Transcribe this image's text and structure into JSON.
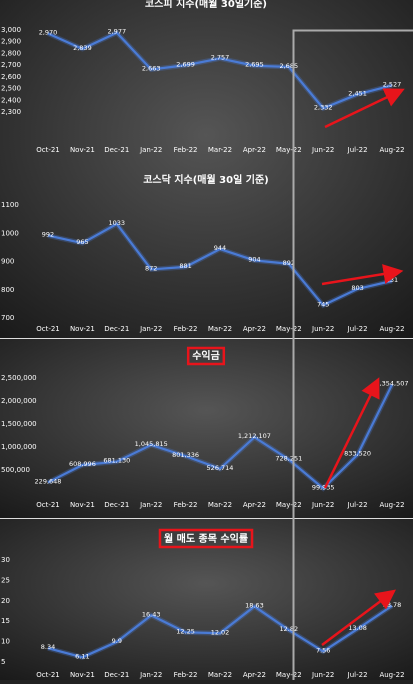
{
  "chart_data": [
    {
      "type": "line",
      "title": "코스피 지수(매월 30일기준)",
      "categories": [
        "Oct-21",
        "Nov-21",
        "Dec-21",
        "Jan-22",
        "Feb-22",
        "Mar-22",
        "Apr-22",
        "May-22",
        "Jun-22",
        "Jul-22",
        "Aug-22"
      ],
      "values": [
        2970,
        2839,
        2977,
        2663,
        2699,
        2757,
        2695,
        2685,
        2332,
        2451,
        2527
      ],
      "value_labels": [
        "2,970",
        "2,839",
        "2,977",
        "2,663",
        "2,699",
        "2,757",
        "2,695",
        "2,685",
        "2,332",
        "2,451",
        "2,527"
      ],
      "color": "#4a7bd6",
      "ylim": [
        2300,
        3000
      ],
      "yticks": [
        {
          "value": 2300,
          "label": "2,300"
        },
        {
          "value": 2400,
          "label": "2,400"
        },
        {
          "value": 2500,
          "label": "2,500"
        },
        {
          "value": 2600,
          "label": "2,600"
        },
        {
          "value": 2700,
          "label": "2,700"
        },
        {
          "value": 2800,
          "label": "2,800"
        },
        {
          "value": 2900,
          "label": "2,900"
        },
        {
          "value": 3000,
          "label": "3,000"
        }
      ]
    },
    {
      "type": "line",
      "title": "코스닥 지수(매월 30일 기준)",
      "categories": [
        "Oct-21",
        "Nov-21",
        "Dec-21",
        "Jan-22",
        "Feb-22",
        "Mar-22",
        "Apr-22",
        "May-22",
        "Jun-22",
        "Jul-22",
        "Aug-22"
      ],
      "values": [
        992,
        965,
        1033,
        872,
        881,
        944,
        904,
        892,
        745,
        803,
        831
      ],
      "color": "#4a7bd6",
      "ylim": [
        700,
        1100
      ],
      "yticks": [
        700,
        800,
        900,
        1000,
        1100
      ]
    },
    {
      "type": "line",
      "title": "수익금",
      "categories": [
        "Oct-21",
        "Nov-21",
        "Dec-21",
        "Jan-22",
        "Feb-22",
        "Mar-22",
        "Apr-22",
        "May-22",
        "Jun-22",
        "Jul-22",
        "Aug-22"
      ],
      "values": [
        229648,
        608996,
        681130,
        1045815,
        801336,
        526714,
        1212107,
        728251,
        99935,
        833520,
        2354507
      ],
      "value_labels": [
        "229,648",
        "608,996",
        "681,130",
        "1,045,815",
        "801,336",
        "526,714",
        "1,212,107",
        "728,251",
        "99,935",
        "833,520",
        "2,354,507"
      ],
      "color": "#4a7bd6",
      "ylim": [
        0,
        2500000
      ],
      "yticks": [
        {
          "value": 500000,
          "label": "500,000"
        },
        {
          "value": 1000000,
          "label": "1,000,000"
        },
        {
          "value": 1500000,
          "label": "1,500,000"
        },
        {
          "value": 2000000,
          "label": "2,000,000"
        },
        {
          "value": 2500000,
          "label": "2,500,000"
        }
      ]
    },
    {
      "type": "line",
      "title": "월 매도 종목 수익률",
      "categories": [
        "Oct-21",
        "Nov-21",
        "Dec-21",
        "Jan-22",
        "Feb-22",
        "Mar-22",
        "Apr-22",
        "May-22",
        "Jun-22",
        "Jul-22",
        "Aug-22"
      ],
      "values": [
        8.34,
        6.11,
        9.9,
        16.43,
        12.25,
        12.02,
        18.63,
        12.82,
        7.56,
        13.08,
        18.78
      ],
      "color": "#4a7bd6",
      "ylim": [
        2.5,
        32
      ],
      "yticks": [
        5,
        10,
        15,
        20,
        25,
        30
      ]
    }
  ]
}
